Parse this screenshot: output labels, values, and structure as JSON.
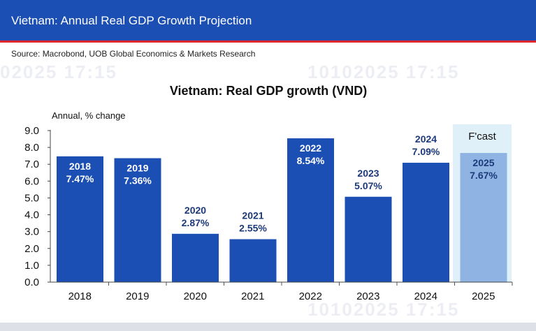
{
  "header": {
    "title": "Vietnam: Annual Real GDP Growth Projection",
    "source": "Source: Macrobond, UOB Global Economics & Markets Research"
  },
  "watermarks": [
    "02025 17:15",
    "10102025 17:15",
    "10102025 17:15"
  ],
  "colors": {
    "banner": "#1c4fb4",
    "accent_red": "#e0262f",
    "bar": "#1c4fb4",
    "forecast_bar": "#8fb4e3",
    "forecast_bg": "#dff0f9",
    "label_dark": "#1d3a7a",
    "label_light": "#ffffff"
  },
  "chart_data": {
    "type": "bar",
    "title": "Vietnam: Real GDP growth (VND)",
    "ylabel": "Annual, % change",
    "xlabel": "",
    "categories": [
      "2018",
      "2019",
      "2020",
      "2021",
      "2022",
      "2023",
      "2024",
      "2025"
    ],
    "values": [
      7.47,
      7.36,
      2.87,
      2.55,
      8.54,
      5.07,
      7.09,
      7.67
    ],
    "data_labels": [
      [
        "2018",
        "7.47%"
      ],
      [
        "2019",
        "7.36%"
      ],
      [
        "2020",
        "2.87%"
      ],
      [
        "2021",
        "2.55%"
      ],
      [
        "2022",
        "8.54%"
      ],
      [
        "2023",
        "5.07%"
      ],
      [
        "2024",
        "7.09%"
      ],
      [
        "2025",
        "7.67%"
      ]
    ],
    "label_inside": [
      true,
      true,
      false,
      false,
      true,
      false,
      false,
      true
    ],
    "forecast_index": 7,
    "forecast_label": "F'cast",
    "ylim": [
      0,
      9
    ],
    "yticks": [
      "0.0",
      "1.0",
      "2.0",
      "3.0",
      "4.0",
      "5.0",
      "6.0",
      "7.0",
      "8.0",
      "9.0"
    ],
    "grid": false,
    "legend": "none"
  }
}
